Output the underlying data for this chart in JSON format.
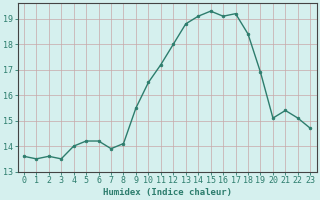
{
  "x": [
    0,
    1,
    2,
    3,
    4,
    5,
    6,
    7,
    8,
    9,
    10,
    11,
    12,
    13,
    14,
    15,
    16,
    17,
    18,
    19,
    20,
    21,
    22,
    23
  ],
  "y": [
    13.6,
    13.5,
    13.6,
    13.5,
    14.0,
    14.2,
    14.2,
    13.9,
    14.1,
    15.5,
    16.5,
    17.2,
    18.0,
    18.8,
    19.1,
    19.3,
    19.1,
    19.2,
    18.4,
    16.9,
    15.1,
    15.4,
    15.1,
    14.7
  ],
  "line_color": "#2d7d6d",
  "marker": "o",
  "markersize": 2.0,
  "linewidth": 1.0,
  "bg_color": "#d5f0ee",
  "grid_color": "#c8a8a8",
  "xlabel": "Humidex (Indice chaleur)",
  "xlim": [
    -0.5,
    23.5
  ],
  "ylim": [
    13.0,
    19.6
  ],
  "yticks": [
    13,
    14,
    15,
    16,
    17,
    18,
    19
  ],
  "xticks": [
    0,
    1,
    2,
    3,
    4,
    5,
    6,
    7,
    8,
    9,
    10,
    11,
    12,
    13,
    14,
    15,
    16,
    17,
    18,
    19,
    20,
    21,
    22,
    23
  ],
  "xlabel_fontsize": 6.5,
  "tick_fontsize": 6.0
}
